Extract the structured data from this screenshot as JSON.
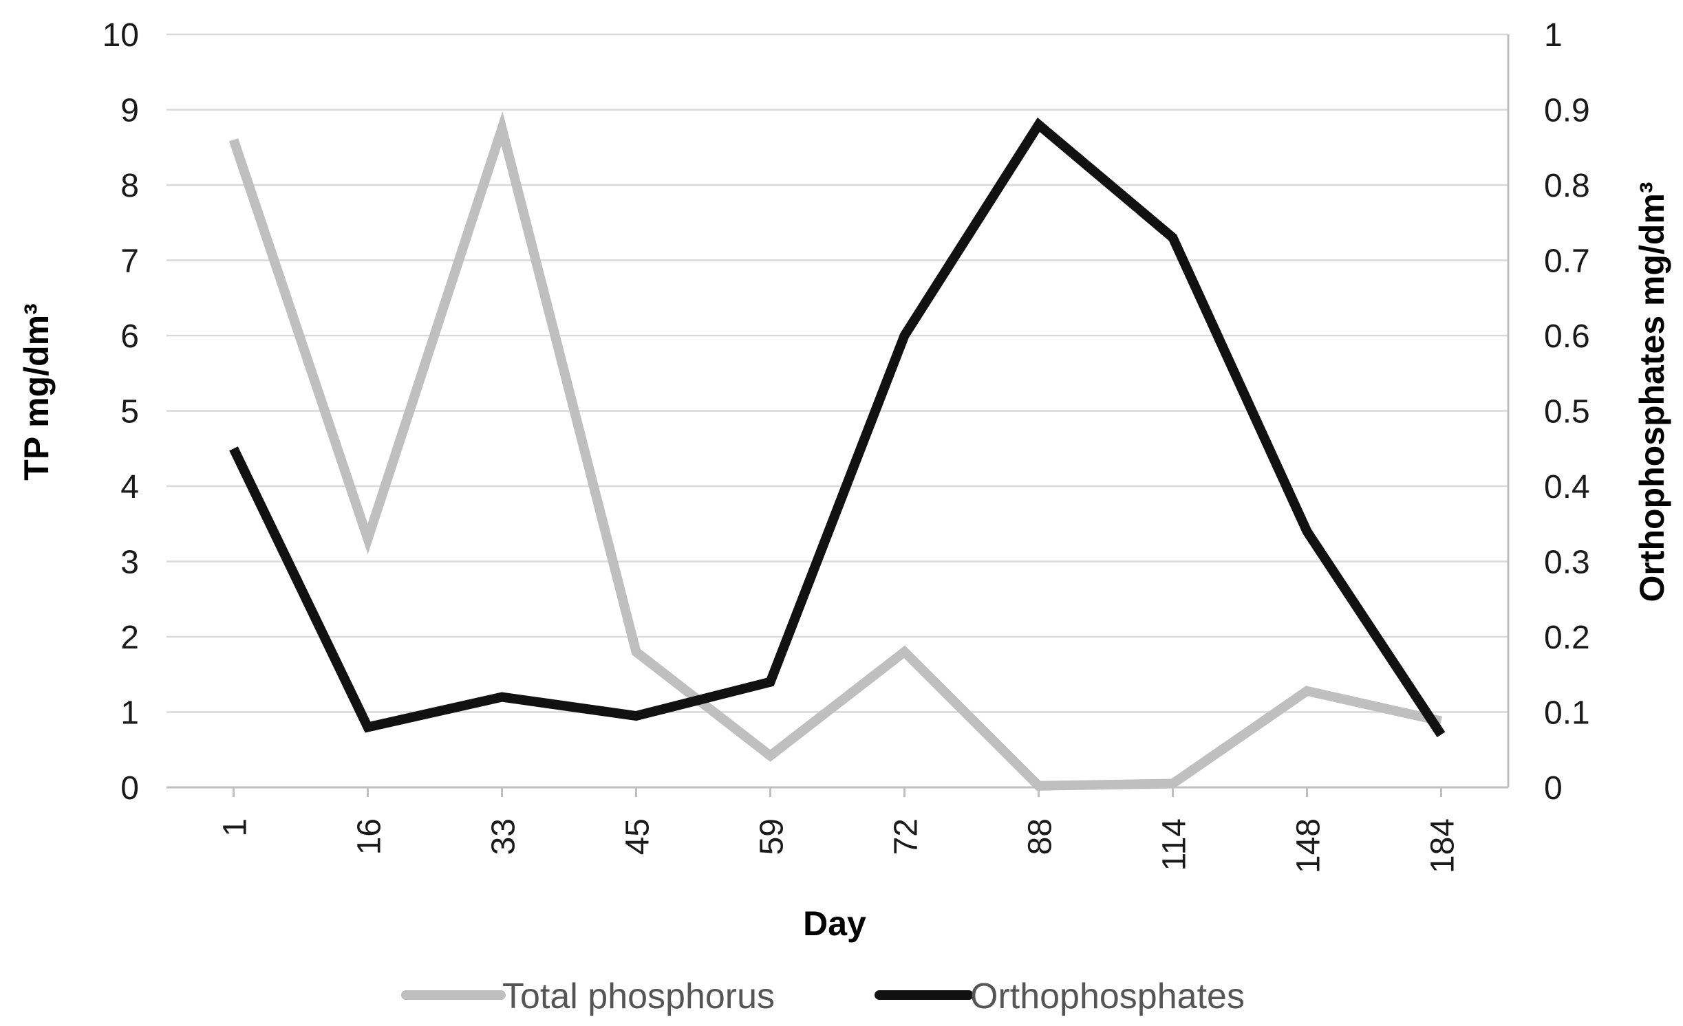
{
  "chart_data": {
    "type": "line",
    "categories": [
      "1",
      "16",
      "33",
      "45",
      "59",
      "72",
      "88",
      "114",
      "148",
      "184"
    ],
    "xlabel": "Day",
    "y_left": {
      "label": "TP mg/dm³",
      "lim": [
        0,
        10
      ],
      "ticks": [
        "0",
        "1",
        "2",
        "3",
        "4",
        "5",
        "6",
        "7",
        "8",
        "9",
        "10"
      ]
    },
    "y_right": {
      "label": "Orthophosphates mg/dm³",
      "lim": [
        0,
        1
      ],
      "ticks": [
        "0",
        "0.1",
        "0.2",
        "0.3",
        "0.4",
        "0.5",
        "0.6",
        "0.7",
        "0.8",
        "0.9",
        "1"
      ]
    },
    "grid": true,
    "legend_position": "bottom",
    "series": [
      {
        "name": "Total phosphorus",
        "axis": "left",
        "color": "#bfbfbf",
        "values": [
          8.6,
          3.3,
          8.75,
          1.8,
          0.42,
          1.8,
          0.02,
          0.05,
          1.28,
          0.88
        ]
      },
      {
        "name": "Orthophosphates",
        "axis": "right",
        "color": "#111111",
        "values": [
          0.45,
          0.08,
          0.12,
          0.095,
          0.14,
          0.6,
          0.88,
          0.73,
          0.34,
          0.07
        ]
      }
    ]
  }
}
